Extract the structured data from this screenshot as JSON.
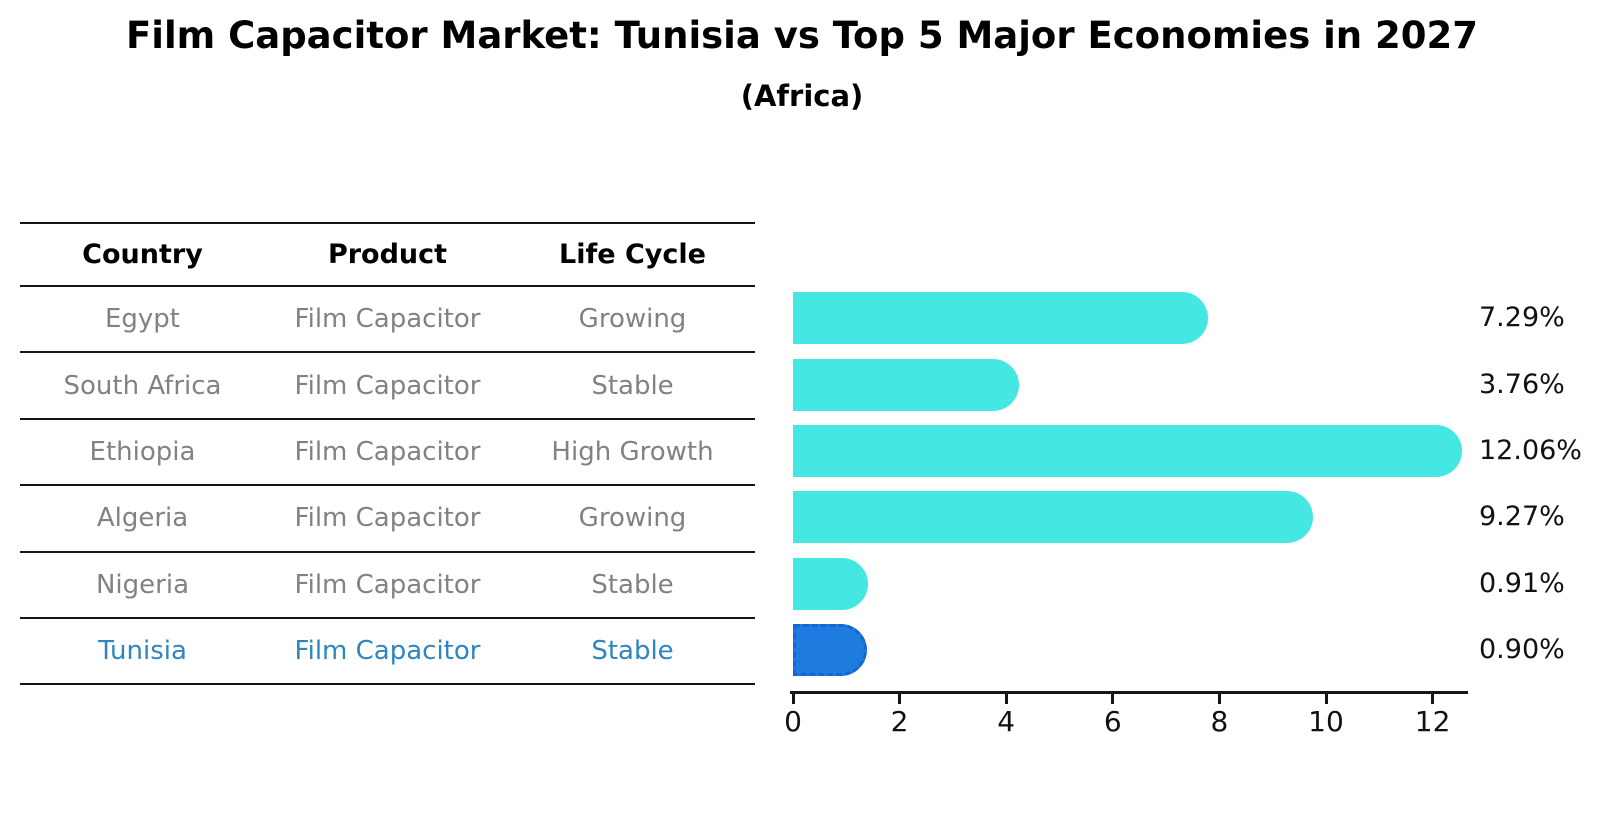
{
  "title": "Film Capacitor Market: Tunisia vs Top 5 Major Economies in 2027",
  "subtitle": "(Africa)",
  "table": {
    "headers": [
      "Country",
      "Product",
      "Life Cycle"
    ],
    "rows": [
      {
        "country": "Egypt",
        "product": "Film Capacitor",
        "life_cycle": "Growing",
        "highlight": false
      },
      {
        "country": "South Africa",
        "product": "Film Capacitor",
        "life_cycle": "Stable",
        "highlight": false
      },
      {
        "country": "Ethiopia",
        "product": "Film Capacitor",
        "life_cycle": "High Growth",
        "highlight": false
      },
      {
        "country": "Algeria",
        "product": "Film Capacitor",
        "life_cycle": "Growing",
        "highlight": false
      },
      {
        "country": "Nigeria",
        "product": "Film Capacitor",
        "life_cycle": "Stable",
        "highlight": false
      },
      {
        "country": "Tunisia",
        "product": "Film Capacitor",
        "life_cycle": "Stable",
        "highlight": true
      }
    ]
  },
  "chart_data": {
    "type": "bar",
    "orientation": "horizontal",
    "title": "Film Capacitor Market: Tunisia vs Top 5 Major Economies in 2027",
    "subtitle": "(Africa)",
    "categories": [
      "Egypt",
      "South Africa",
      "Ethiopia",
      "Algeria",
      "Nigeria",
      "Tunisia"
    ],
    "values": [
      7.29,
      3.76,
      12.06,
      9.27,
      0.91,
      0.9
    ],
    "value_labels": [
      "7.29%",
      "3.76%",
      "12.06%",
      "9.27%",
      "0.91%",
      "0.90%"
    ],
    "x_ticks": [
      0,
      2,
      4,
      6,
      8,
      10,
      12
    ],
    "xlim": [
      0,
      12.6
    ],
    "xlabel": "",
    "ylabel": "",
    "grid": false,
    "legend": false,
    "bar_color": "#45E7E2",
    "highlight_index": 5,
    "highlight_bar_color": "#1E7CE0",
    "highlight_bar_border": "dashed",
    "highlight_text_color": "#2E86C1"
  },
  "colors": {
    "background": "#FFFFFF",
    "text": "#111111",
    "muted_text": "#828282",
    "line": "#151515",
    "accent_cyan": "#45E7E2",
    "accent_blue": "#1E7CE0",
    "table_highlight_blue": "#2E86C1"
  }
}
